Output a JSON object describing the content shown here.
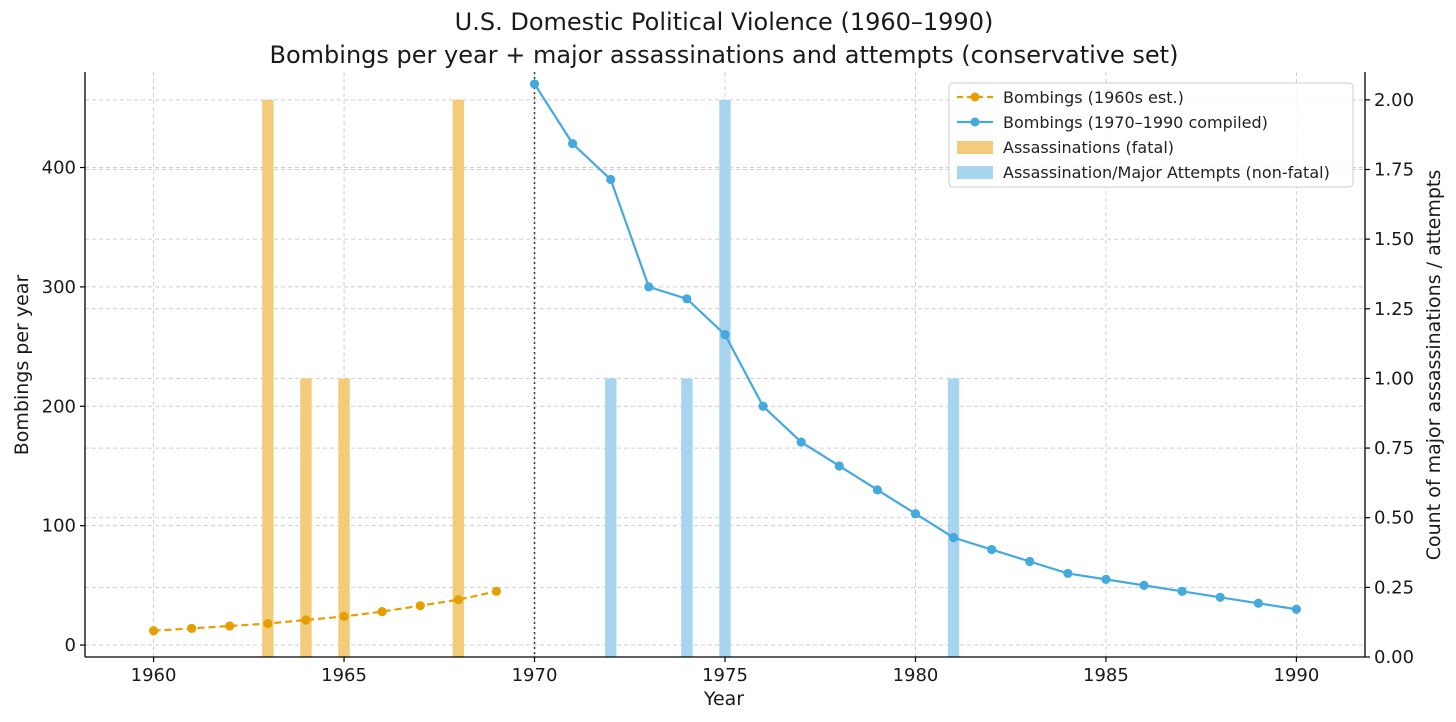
{
  "chart_data": {
    "type": "bar+line",
    "title": "U.S. Domestic Political Violence (1960–1990)",
    "subtitle": "Bombings per year + major assassinations and attempts (conservative set)",
    "xlabel": "Year",
    "ylabel_left": "Bombings per year",
    "ylabel_right": "Count of major assassinations / attempts",
    "xlim": [
      1958.2,
      1991.8
    ],
    "ylim_left": [
      -10,
      480
    ],
    "ylim_right": [
      0,
      2.1
    ],
    "x_ticks": [
      "1960",
      "1965",
      "1970",
      "1975",
      "1980",
      "1985",
      "1990"
    ],
    "y_left_ticks": [
      "0",
      "100",
      "200",
      "300",
      "400"
    ],
    "y_right_ticks": [
      "0.00",
      "0.25",
      "0.50",
      "0.75",
      "1.00",
      "1.25",
      "1.50",
      "1.75",
      "2.00"
    ],
    "grid": true,
    "divider_year": 1970,
    "legend_position": "top-right",
    "colors": {
      "bombings_1960s": "#E69F00",
      "bombings_1970s": "#44AADD",
      "fatal_bars": "#F2CC7A",
      "attempt_bars": "#A7D5F0"
    },
    "series": [
      {
        "name": "Bombings (1960s est.)",
        "kind": "line-dashed",
        "axis": "left",
        "color": "#E69F00",
        "x": [
          1960,
          1961,
          1962,
          1963,
          1964,
          1965,
          1966,
          1967,
          1968,
          1969
        ],
        "values": [
          12,
          14,
          16,
          18,
          21,
          24,
          28,
          33,
          38,
          45
        ]
      },
      {
        "name": "Bombings (1970–1990 compiled)",
        "kind": "line",
        "axis": "left",
        "color": "#44AADD",
        "x": [
          1970,
          1971,
          1972,
          1973,
          1974,
          1975,
          1976,
          1977,
          1978,
          1979,
          1980,
          1981,
          1982,
          1983,
          1984,
          1985,
          1986,
          1987,
          1988,
          1989,
          1990
        ],
        "values": [
          470,
          420,
          390,
          300,
          290,
          260,
          200,
          170,
          150,
          130,
          110,
          90,
          80,
          70,
          60,
          55,
          50,
          45,
          40,
          35,
          30
        ]
      },
      {
        "name": "Assassinations (fatal)",
        "kind": "bar",
        "axis": "right",
        "color": "#F2CC7A",
        "x": [
          1963,
          1964,
          1965,
          1968
        ],
        "values": [
          2,
          1,
          1,
          2
        ]
      },
      {
        "name": "Assassination/Major Attempts (non-fatal)",
        "kind": "bar",
        "axis": "right",
        "color": "#A7D5F0",
        "x": [
          1972,
          1974,
          1975,
          1981
        ],
        "values": [
          1,
          1,
          2,
          1
        ]
      }
    ]
  }
}
